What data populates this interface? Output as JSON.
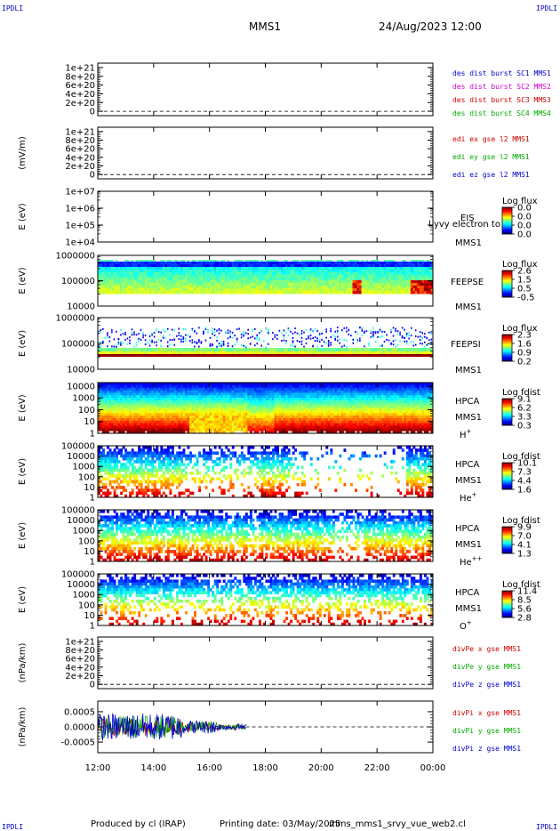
{
  "header": {
    "corner_label": "IPDLI",
    "mission": "MMS1",
    "datetime": "24/Aug/2023 12:00"
  },
  "footer": {
    "produced": "Produced by cl (IRAP)",
    "printing_date": "Printing date: 03/May/2025",
    "filename": "mms_mms1_srvy_vue_web2.cl"
  },
  "chart_data": [
    {
      "id": "p1",
      "type": "line",
      "y_ticks": [
        "1e+21",
        "8e+20",
        "6e+20",
        "4e+20",
        "2e+20",
        "0"
      ],
      "y_values": [
        1e+21,
        8e+20,
        6e+20,
        4e+20,
        2e+20,
        0
      ],
      "ylim": [
        -1e+20,
        1.1e+21
      ],
      "ylabel": "",
      "zero_line": true,
      "legend": [
        {
          "text": "des dist burst SC1 MMS1",
          "color": "#0000cc"
        },
        {
          "text": "des dist burst SC2 MMS2",
          "color": "#cc00cc"
        },
        {
          "text": "des dist burst SC3 MMS3",
          "color": "#cc0000"
        },
        {
          "text": "des dist burst SC4 MMS4",
          "color": "#00aa00"
        }
      ]
    },
    {
      "id": "p2",
      "type": "line",
      "y_ticks": [
        "1e+21",
        "8e+20",
        "6e+20",
        "4e+20",
        "2e+20",
        "0"
      ],
      "y_values": [
        1e+21,
        8e+20,
        6e+20,
        4e+20,
        2e+20,
        0
      ],
      "ylim": [
        -1e+20,
        1.1e+21
      ],
      "ylabel": "(mV/m)",
      "zero_line": true,
      "legend": [
        {
          "text": "edi ex gse l2 MMS1",
          "color": "#cc0000"
        },
        {
          "text": "edi ey gse l2 MMS1",
          "color": "#00aa00"
        },
        {
          "text": "edi ez gse l2 MMS1",
          "color": "#0000cc"
        }
      ]
    },
    {
      "id": "p3",
      "type": "heatmap",
      "y_ticks": [
        "1e+07",
        "1e+06",
        "1e+05",
        "1e+04"
      ],
      "y_values": [
        7,
        6,
        5,
        4
      ],
      "ylim": [
        4,
        7
      ],
      "log_scale": true,
      "ylabel": "E (eV)",
      "side": [
        "EIS",
        "MMS1"
      ],
      "overlay": "l yvy electron to",
      "colorbar": {
        "title": "Log flux",
        "labels": [
          "0.0",
          "0.0",
          "0.0",
          "0.0"
        ]
      },
      "fill": "empty"
    },
    {
      "id": "p4",
      "type": "heatmap",
      "y_ticks": [
        "1000000",
        "100000",
        "10000"
      ],
      "y_values": [
        6,
        5,
        4
      ],
      "ylim": [
        4,
        6
      ],
      "log_scale": true,
      "ylabel": "E (eV)",
      "side": [
        "FEEPSE",
        "MMS1"
      ],
      "colorbar": {
        "title": "Log flux",
        "labels": [
          "2.6",
          "1.5",
          "0.5",
          "-0.5"
        ]
      },
      "fill": "feepse"
    },
    {
      "id": "p5",
      "type": "heatmap",
      "y_ticks": [
        "1000000",
        "100000",
        "10000"
      ],
      "y_values": [
        6,
        5,
        4
      ],
      "ylim": [
        4,
        6
      ],
      "log_scale": true,
      "ylabel": "E (eV)",
      "side": [
        "FEEPSI",
        "MMS1"
      ],
      "colorbar": {
        "title": "Log flux",
        "labels": [
          "2.3",
          "1.6",
          "0.9",
          "0.2"
        ]
      },
      "fill": "feepsi"
    },
    {
      "id": "p6",
      "type": "heatmap",
      "y_ticks": [
        "10000",
        "1000",
        "100",
        "10",
        "1"
      ],
      "y_values": [
        4,
        3,
        2,
        1,
        0
      ],
      "ylim": [
        0,
        4.3
      ],
      "log_scale": true,
      "ylabel": "E (eV)",
      "side": [
        "HPCA",
        "MMS1"
      ],
      "species": "H",
      "charge": "+",
      "colorbar": {
        "title": "Log fdist",
        "labels": [
          "9.1",
          "6.2",
          "3.3",
          "0.3"
        ]
      },
      "fill": "hplus"
    },
    {
      "id": "p7",
      "type": "heatmap",
      "y_ticks": [
        "100000",
        "10000",
        "1000",
        "100",
        "10",
        "1"
      ],
      "y_values": [
        5,
        4,
        3,
        2,
        1,
        0
      ],
      "ylim": [
        0,
        5
      ],
      "log_scale": true,
      "ylabel": "E (eV)",
      "side": [
        "HPCA",
        "MMS1"
      ],
      "species": "He",
      "charge": "+",
      "colorbar": {
        "title": "Log fdist",
        "labels": [
          "10.1",
          "7.3",
          "4.4",
          "1.6"
        ]
      },
      "fill": "heplus"
    },
    {
      "id": "p8",
      "type": "heatmap",
      "y_ticks": [
        "100000",
        "10000",
        "1000",
        "100",
        "10",
        "1"
      ],
      "y_values": [
        5,
        4,
        3,
        2,
        1,
        0
      ],
      "ylim": [
        0,
        5
      ],
      "log_scale": true,
      "ylabel": "E (eV)",
      "side": [
        "HPCA",
        "MMS1"
      ],
      "species": "He",
      "charge": "++",
      "colorbar": {
        "title": "Log fdist",
        "labels": [
          "9.9",
          "7.0",
          "4.1",
          "1.3"
        ]
      },
      "fill": "hepp"
    },
    {
      "id": "p9",
      "type": "heatmap",
      "y_ticks": [
        "100000",
        "10000",
        "1000",
        "100",
        "10",
        "1"
      ],
      "y_values": [
        5,
        4,
        3,
        2,
        1,
        0
      ],
      "ylim": [
        0,
        5
      ],
      "log_scale": true,
      "ylabel": "E (eV)",
      "side": [
        "HPCA",
        "MMS1"
      ],
      "species": "O",
      "charge": "+",
      "colorbar": {
        "title": "Log fdist",
        "labels": [
          "11.4",
          "8.5",
          "5.6",
          "2.8"
        ]
      },
      "fill": "oplus"
    },
    {
      "id": "p10",
      "type": "line",
      "y_ticks": [
        "1e+21",
        "8e+20",
        "6e+20",
        "4e+20",
        "2e+20",
        "0"
      ],
      "y_values": [
        1e+21,
        8e+20,
        6e+20,
        4e+20,
        2e+20,
        0
      ],
      "ylim": [
        -1e+20,
        1.1e+21
      ],
      "ylabel": "(nPa/km)",
      "zero_line": true,
      "legend": [
        {
          "text": "divPe x gse MMS1",
          "color": "#cc0000"
        },
        {
          "text": "divPe y gse MMS1",
          "color": "#00aa00"
        },
        {
          "text": "divPe z gse MMS1",
          "color": "#0000cc"
        }
      ]
    },
    {
      "id": "p11",
      "type": "line",
      "y_ticks": [
        "0.0005",
        "0.0000",
        "-0.0005"
      ],
      "y_values": [
        0.0005,
        0,
        -0.0005
      ],
      "ylim": [
        -0.00085,
        0.00085
      ],
      "ylabel": "(nPa/km)",
      "zero_line": true,
      "noise": true,
      "legend": [
        {
          "text": "divPi x gse MMS1",
          "color": "#cc0000"
        },
        {
          "text": "divPi y gse MMS1",
          "color": "#00aa00"
        },
        {
          "text": "divPi z gse MMS1",
          "color": "#0000cc"
        }
      ]
    }
  ],
  "x_axis": {
    "labels": [
      "12:00",
      "14:00",
      "16:00",
      "18:00",
      "20:00",
      "22:00",
      "00:00"
    ],
    "hours": [
      12,
      14,
      16,
      18,
      20,
      22,
      24
    ],
    "range": [
      12,
      24
    ]
  }
}
